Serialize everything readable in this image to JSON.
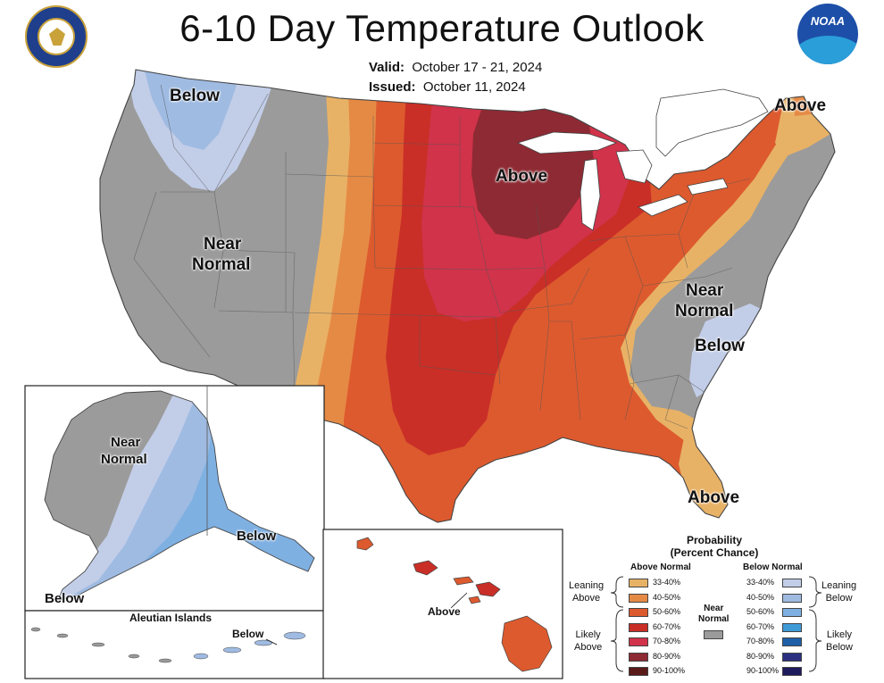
{
  "title": "6-10 Day Temperature Outlook",
  "valid_label": "Valid:",
  "valid_dates": "October 17 - 21, 2024",
  "issued_label": "Issued:",
  "issued_date": "October 11, 2024",
  "map_labels": {
    "below_nw": "Below",
    "near_normal_west_1": "Near",
    "near_normal_west_2": "Normal",
    "above_central": "Above",
    "above_ne": "Above",
    "near_normal_east_1": "Near",
    "near_normal_east_2": "Normal",
    "below_se": "Below",
    "above_fl": "Above",
    "alaska_near_1": "Near",
    "alaska_near_2": "Normal",
    "alaska_below_se": "Below",
    "alaska_below_sw": "Below",
    "aleutian_title": "Aleutian Islands",
    "aleutian_below": "Below",
    "hawaii_above": "Above"
  },
  "legend": {
    "title_1": "Probability",
    "title_2": "(Percent Chance)",
    "above_header": "Above Normal",
    "below_header": "Below Normal",
    "leaning_above_1": "Leaning",
    "leaning_above_2": "Above",
    "likely_above_1": "Likely",
    "likely_above_2": "Above",
    "leaning_below_1": "Leaning",
    "leaning_below_2": "Below",
    "likely_below_1": "Likely",
    "likely_below_2": "Below",
    "near_normal_1": "Near",
    "near_normal_2": "Normal",
    "near_normal_color": "#9b9b9b",
    "above_items": [
      {
        "range": "33-40%",
        "color": "#e8b266"
      },
      {
        "range": "40-50%",
        "color": "#e58a45"
      },
      {
        "range": "50-60%",
        "color": "#dd5a2e"
      },
      {
        "range": "60-70%",
        "color": "#c92f27"
      },
      {
        "range": "70-80%",
        "color": "#d0334a"
      },
      {
        "range": "80-90%",
        "color": "#8e2a33"
      },
      {
        "range": "90-100%",
        "color": "#5a1a1a"
      }
    ],
    "below_items": [
      {
        "range": "33-40%",
        "color": "#c2cde8"
      },
      {
        "range": "40-50%",
        "color": "#9fbbe2"
      },
      {
        "range": "50-60%",
        "color": "#7fb0e2"
      },
      {
        "range": "60-70%",
        "color": "#3f9ad8"
      },
      {
        "range": "70-80%",
        "color": "#1f5fa8"
      },
      {
        "range": "80-90%",
        "color": "#2a2f80"
      },
      {
        "range": "90-100%",
        "color": "#1e1b5c"
      }
    ]
  },
  "colors": {
    "near_normal": "#9b9b9b",
    "a33": "#e8b266",
    "a40": "#e58a45",
    "a50": "#dd5a2e",
    "a60": "#c92f27",
    "a70": "#d0334a",
    "a80": "#8e2a33",
    "b33": "#c2cde8",
    "b40": "#9fbbe2",
    "b50": "#7fb0e2",
    "b60": "#3f9ad8"
  },
  "logos": {
    "doc_seal": "department-of-commerce-seal",
    "noaa_text": "NOAA"
  }
}
